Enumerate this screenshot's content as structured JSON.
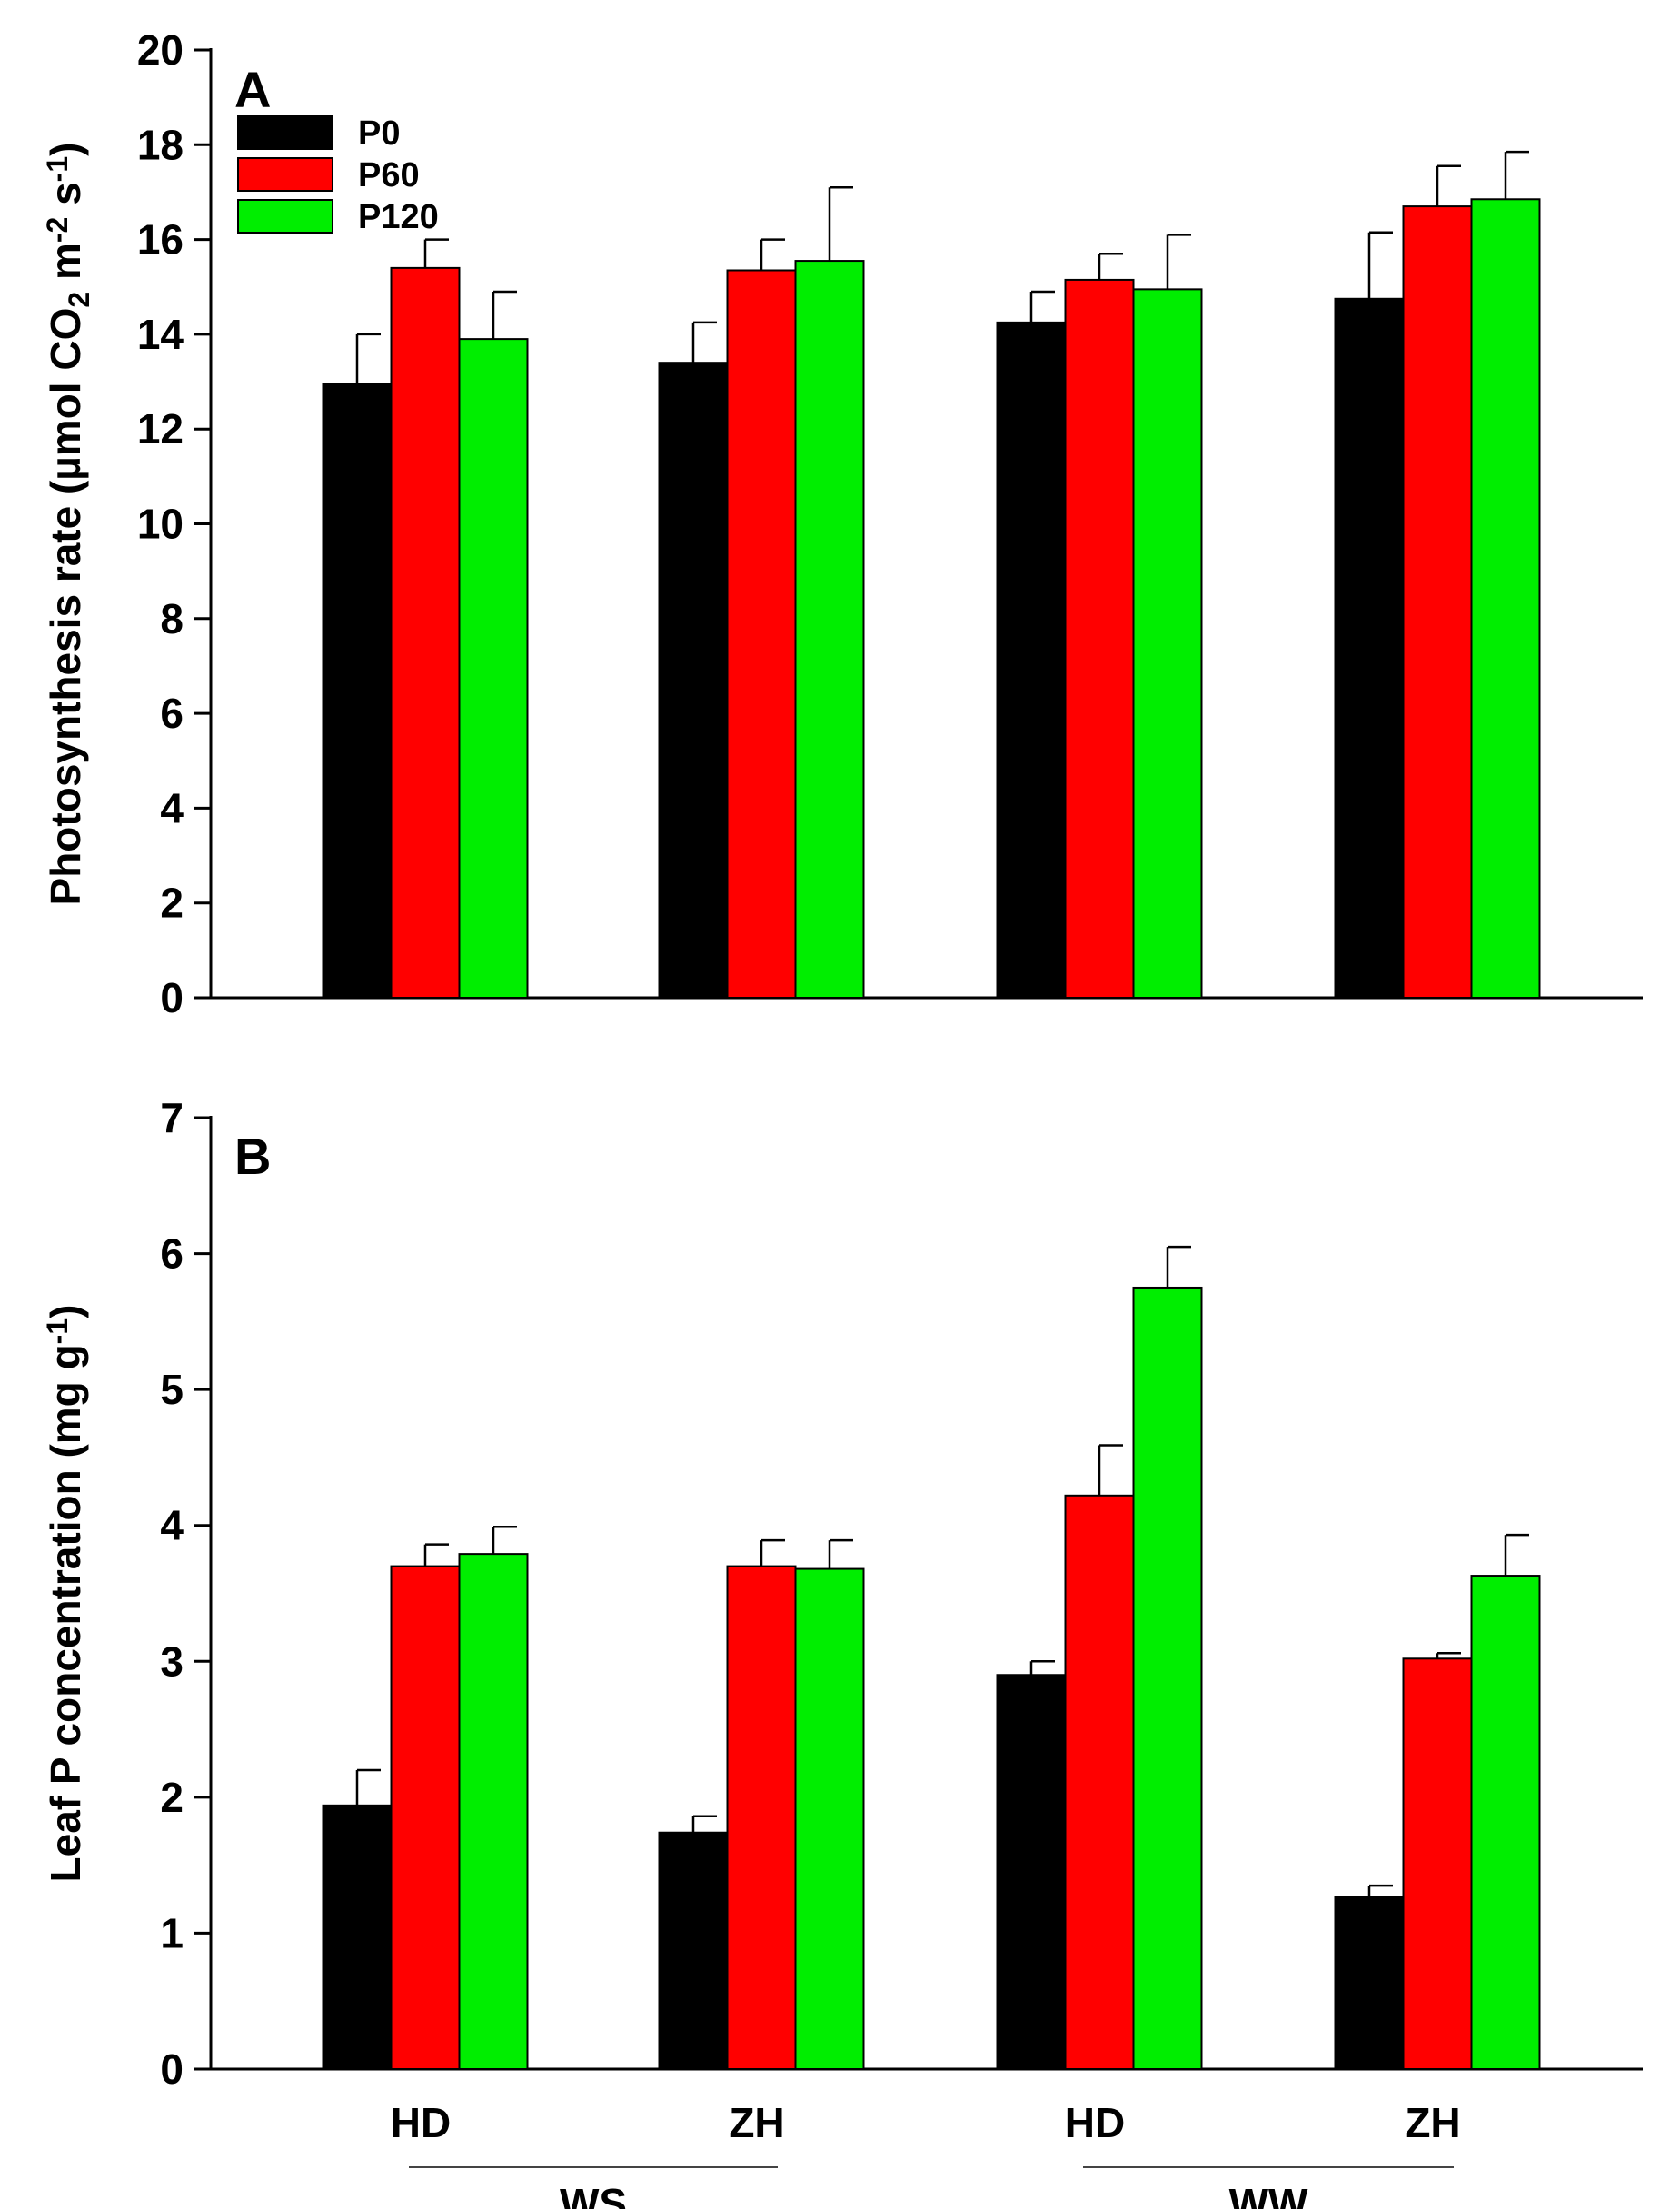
{
  "chart_data": [
    {
      "type": "bar",
      "panel": "A",
      "ylabel": {
        "pre": "Photosynthesis rate (µmol CO",
        "sub": "2",
        "mid": " m",
        "sup1": "-2",
        "mid2": " s",
        "sup2": "-1",
        "post": ")"
      },
      "ylim": [
        0,
        20
      ],
      "yticks": [
        0,
        2,
        4,
        6,
        8,
        10,
        12,
        14,
        16,
        18,
        20
      ],
      "legend_position": "top-left",
      "series": [
        {
          "name": "P0",
          "color": "#000000",
          "values": [
            12.95,
            13.4,
            14.25,
            14.75
          ],
          "errors": [
            1.05,
            0.85,
            0.65,
            1.4
          ]
        },
        {
          "name": "P60",
          "color": "#ff0000",
          "values": [
            15.4,
            15.35,
            15.15,
            16.7
          ],
          "errors": [
            0.6,
            0.65,
            0.55,
            0.85
          ]
        },
        {
          "name": "P120",
          "color": "#00ee00",
          "values": [
            13.9,
            15.55,
            14.95,
            16.85
          ],
          "errors": [
            1.0,
            1.55,
            1.15,
            1.0
          ]
        }
      ],
      "categories": [
        "HD",
        "ZH",
        "HD",
        "ZH"
      ]
    },
    {
      "type": "bar",
      "panel": "B",
      "ylabel": {
        "pre": "Leaf P concentration (mg g",
        "sup1": "-1",
        "post": ")"
      },
      "ylim": [
        0,
        7
      ],
      "yticks": [
        0,
        1,
        2,
        3,
        4,
        5,
        6,
        7
      ],
      "series": [
        {
          "name": "P0",
          "color": "#000000",
          "values": [
            1.94,
            1.74,
            2.9,
            1.27
          ],
          "errors": [
            0.26,
            0.12,
            0.1,
            0.08
          ]
        },
        {
          "name": "P60",
          "color": "#ff0000",
          "values": [
            3.7,
            3.7,
            4.22,
            3.02
          ],
          "errors": [
            0.16,
            0.19,
            0.37,
            0.04
          ]
        },
        {
          "name": "P120",
          "color": "#00ee00",
          "values": [
            3.79,
            3.68,
            5.75,
            3.63
          ],
          "errors": [
            0.2,
            0.21,
            0.3,
            0.3
          ]
        }
      ],
      "categories": [
        "HD",
        "ZH",
        "HD",
        "ZH"
      ],
      "groups": [
        {
          "label": "WS",
          "categories": [
            "HD",
            "ZH"
          ]
        },
        {
          "label": "WW",
          "categories": [
            "HD",
            "ZH"
          ]
        }
      ]
    }
  ]
}
